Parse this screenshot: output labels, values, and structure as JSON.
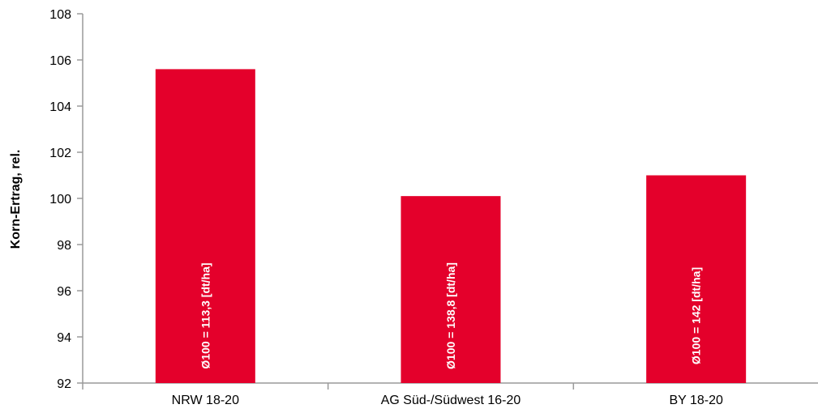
{
  "colors": {
    "bar": "#E4002B",
    "axis": "#9a9a9a",
    "text": "#000000",
    "bar_label": "#ffffff"
  },
  "chart_data": {
    "type": "bar",
    "categories": [
      "NRW 18-20",
      "AG Süd-/Südwest 16-20",
      "BY 18-20"
    ],
    "values": [
      105.6,
      100.1,
      101.0
    ],
    "bar_labels": [
      "Ø100 = 113,3 [dt/ha]",
      "Ø100 = 138,8 [dt/ha]",
      "Ø100 = 142 [dt/ha]"
    ],
    "ylabel": "Korn-Ertrag, rel.",
    "xlabel": "",
    "title": "",
    "ylim": [
      92,
      108
    ],
    "yticks": [
      92,
      94,
      96,
      98,
      100,
      102,
      104,
      106,
      108
    ],
    "grid": false,
    "legend": "none"
  }
}
